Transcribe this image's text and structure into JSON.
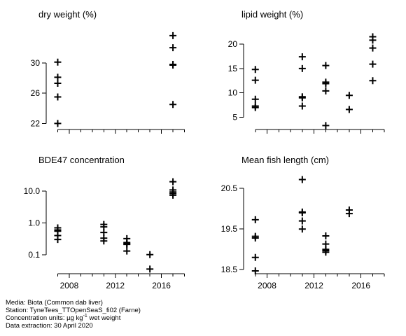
{
  "chart_data": [
    {
      "type": "scatter",
      "title": "dry weight (%)",
      "xlabel": "",
      "ylabel": "",
      "xlim": [
        2006,
        2019
      ],
      "ylim": [
        21.2,
        34.6
      ],
      "y_scale": "linear",
      "x_ticks": [
        2008,
        2012,
        2016
      ],
      "x_minor_ticks": [
        2007,
        2008,
        2009,
        2010,
        2011,
        2012,
        2013,
        2014,
        2015,
        2016,
        2017,
        2018
      ],
      "x_tick_labels_shown": false,
      "y_ticks": [
        22,
        26,
        30
      ],
      "y_tick_labels": [
        "22",
        "26",
        "30"
      ],
      "points": [
        {
          "x": 2007,
          "y": 30.1
        },
        {
          "x": 2007,
          "y": 28.1
        },
        {
          "x": 2007,
          "y": 27.3
        },
        {
          "x": 2007,
          "y": 25.5
        },
        {
          "x": 2007,
          "y": 22.0
        },
        {
          "x": 2017,
          "y": 33.6
        },
        {
          "x": 2017,
          "y": 32.0
        },
        {
          "x": 2017,
          "y": 29.8
        },
        {
          "x": 2017,
          "y": 29.7
        },
        {
          "x": 2017,
          "y": 24.5
        }
      ]
    },
    {
      "type": "scatter",
      "title": "lipid weight (%)",
      "xlabel": "",
      "ylabel": "",
      "xlim": [
        2006,
        2019
      ],
      "ylim": [
        2.5,
        23.3
      ],
      "y_scale": "linear",
      "x_ticks": [
        2008,
        2012,
        2016
      ],
      "x_minor_ticks": [
        2007,
        2008,
        2009,
        2010,
        2011,
        2012,
        2013,
        2014,
        2015,
        2016,
        2017,
        2018
      ],
      "x_tick_labels_shown": false,
      "y_ticks": [
        5,
        10,
        15,
        20
      ],
      "y_tick_labels": [
        "5",
        "10",
        "15",
        "20"
      ],
      "points": [
        {
          "x": 2007,
          "y": 14.8
        },
        {
          "x": 2007,
          "y": 12.6
        },
        {
          "x": 2007,
          "y": 8.7
        },
        {
          "x": 2007,
          "y": 7.3
        },
        {
          "x": 2007,
          "y": 7.0
        },
        {
          "x": 2011,
          "y": 17.4
        },
        {
          "x": 2011,
          "y": 15.0
        },
        {
          "x": 2011,
          "y": 9.2
        },
        {
          "x": 2011,
          "y": 9.0
        },
        {
          "x": 2011,
          "y": 7.3
        },
        {
          "x": 2013,
          "y": 15.6
        },
        {
          "x": 2013,
          "y": 12.2
        },
        {
          "x": 2013,
          "y": 11.9
        },
        {
          "x": 2013,
          "y": 10.4
        },
        {
          "x": 2013,
          "y": 3.3
        },
        {
          "x": 2015,
          "y": 9.5
        },
        {
          "x": 2015,
          "y": 6.6
        },
        {
          "x": 2017,
          "y": 21.5
        },
        {
          "x": 2017,
          "y": 20.8
        },
        {
          "x": 2017,
          "y": 19.2
        },
        {
          "x": 2017,
          "y": 15.9
        },
        {
          "x": 2017,
          "y": 12.5
        }
      ]
    },
    {
      "type": "scatter",
      "title": "BDE47 concentration",
      "xlabel": "",
      "ylabel": "",
      "xlim": [
        2006,
        2019
      ],
      "ylim": [
        0.025,
        40
      ],
      "y_scale": "log",
      "x_ticks": [
        2008,
        2012,
        2016
      ],
      "x_tick_labels": [
        "2008",
        "2012",
        "2016"
      ],
      "x_minor_ticks": [
        2007,
        2008,
        2009,
        2010,
        2011,
        2012,
        2013,
        2014,
        2015,
        2016,
        2017,
        2018
      ],
      "y_ticks": [
        0.1,
        1.0,
        10.0
      ],
      "y_tick_labels": [
        "0.1",
        "1.0",
        "10.0"
      ],
      "points": [
        {
          "x": 2007,
          "y": 0.7
        },
        {
          "x": 2007,
          "y": 0.6
        },
        {
          "x": 2007,
          "y": 0.55
        },
        {
          "x": 2007,
          "y": 0.4
        },
        {
          "x": 2007,
          "y": 0.3
        },
        {
          "x": 2011,
          "y": 0.9
        },
        {
          "x": 2011,
          "y": 0.75
        },
        {
          "x": 2011,
          "y": 0.5
        },
        {
          "x": 2011,
          "y": 0.33
        },
        {
          "x": 2011,
          "y": 0.27
        },
        {
          "x": 2013,
          "y": 0.32
        },
        {
          "x": 2013,
          "y": 0.24
        },
        {
          "x": 2013,
          "y": 0.22
        },
        {
          "x": 2013,
          "y": 0.21
        },
        {
          "x": 2013,
          "y": 0.13
        },
        {
          "x": 2015,
          "y": 0.1
        },
        {
          "x": 2015,
          "y": 0.035
        },
        {
          "x": 2017,
          "y": 20.0
        },
        {
          "x": 2017,
          "y": 11.0
        },
        {
          "x": 2017,
          "y": 9.5
        },
        {
          "x": 2017,
          "y": 8.5
        },
        {
          "x": 2017,
          "y": 7.5
        }
      ]
    },
    {
      "type": "scatter",
      "title": "Mean fish length (cm)",
      "xlabel": "",
      "ylabel": "",
      "xlim": [
        2006,
        2019
      ],
      "ylim": [
        18.4,
        20.9
      ],
      "y_scale": "linear",
      "x_ticks": [
        2008,
        2012,
        2016
      ],
      "x_tick_labels": [
        "2008",
        "2012",
        "2016"
      ],
      "x_minor_ticks": [
        2007,
        2008,
        2009,
        2010,
        2011,
        2012,
        2013,
        2014,
        2015,
        2016,
        2017,
        2018
      ],
      "y_ticks": [
        18.5,
        19.5,
        20.5
      ],
      "y_tick_labels": [
        "18.5",
        "19.5",
        "20.5"
      ],
      "points": [
        {
          "x": 2007,
          "y": 19.73
        },
        {
          "x": 2007,
          "y": 19.32
        },
        {
          "x": 2007,
          "y": 19.28
        },
        {
          "x": 2007,
          "y": 18.8
        },
        {
          "x": 2007,
          "y": 18.47
        },
        {
          "x": 2011,
          "y": 20.72
        },
        {
          "x": 2011,
          "y": 19.92
        },
        {
          "x": 2011,
          "y": 19.9
        },
        {
          "x": 2011,
          "y": 19.7
        },
        {
          "x": 2011,
          "y": 19.5
        },
        {
          "x": 2013,
          "y": 19.33
        },
        {
          "x": 2013,
          "y": 19.13
        },
        {
          "x": 2013,
          "y": 19.0
        },
        {
          "x": 2013,
          "y": 18.97
        },
        {
          "x": 2013,
          "y": 18.93
        },
        {
          "x": 2015,
          "y": 19.97
        },
        {
          "x": 2015,
          "y": 19.88
        }
      ]
    }
  ],
  "caption": {
    "media": "Media: Biota (Common dab liver)",
    "station": "Station: TyneTees_TTOpenSeaS_fi02 (Farne)",
    "units_prefix": "Concentration units:  µg kg",
    "units_exponent": "-1",
    "units_suffix": " wet weight",
    "extraction": "Data extraction: 30 April 2020"
  }
}
